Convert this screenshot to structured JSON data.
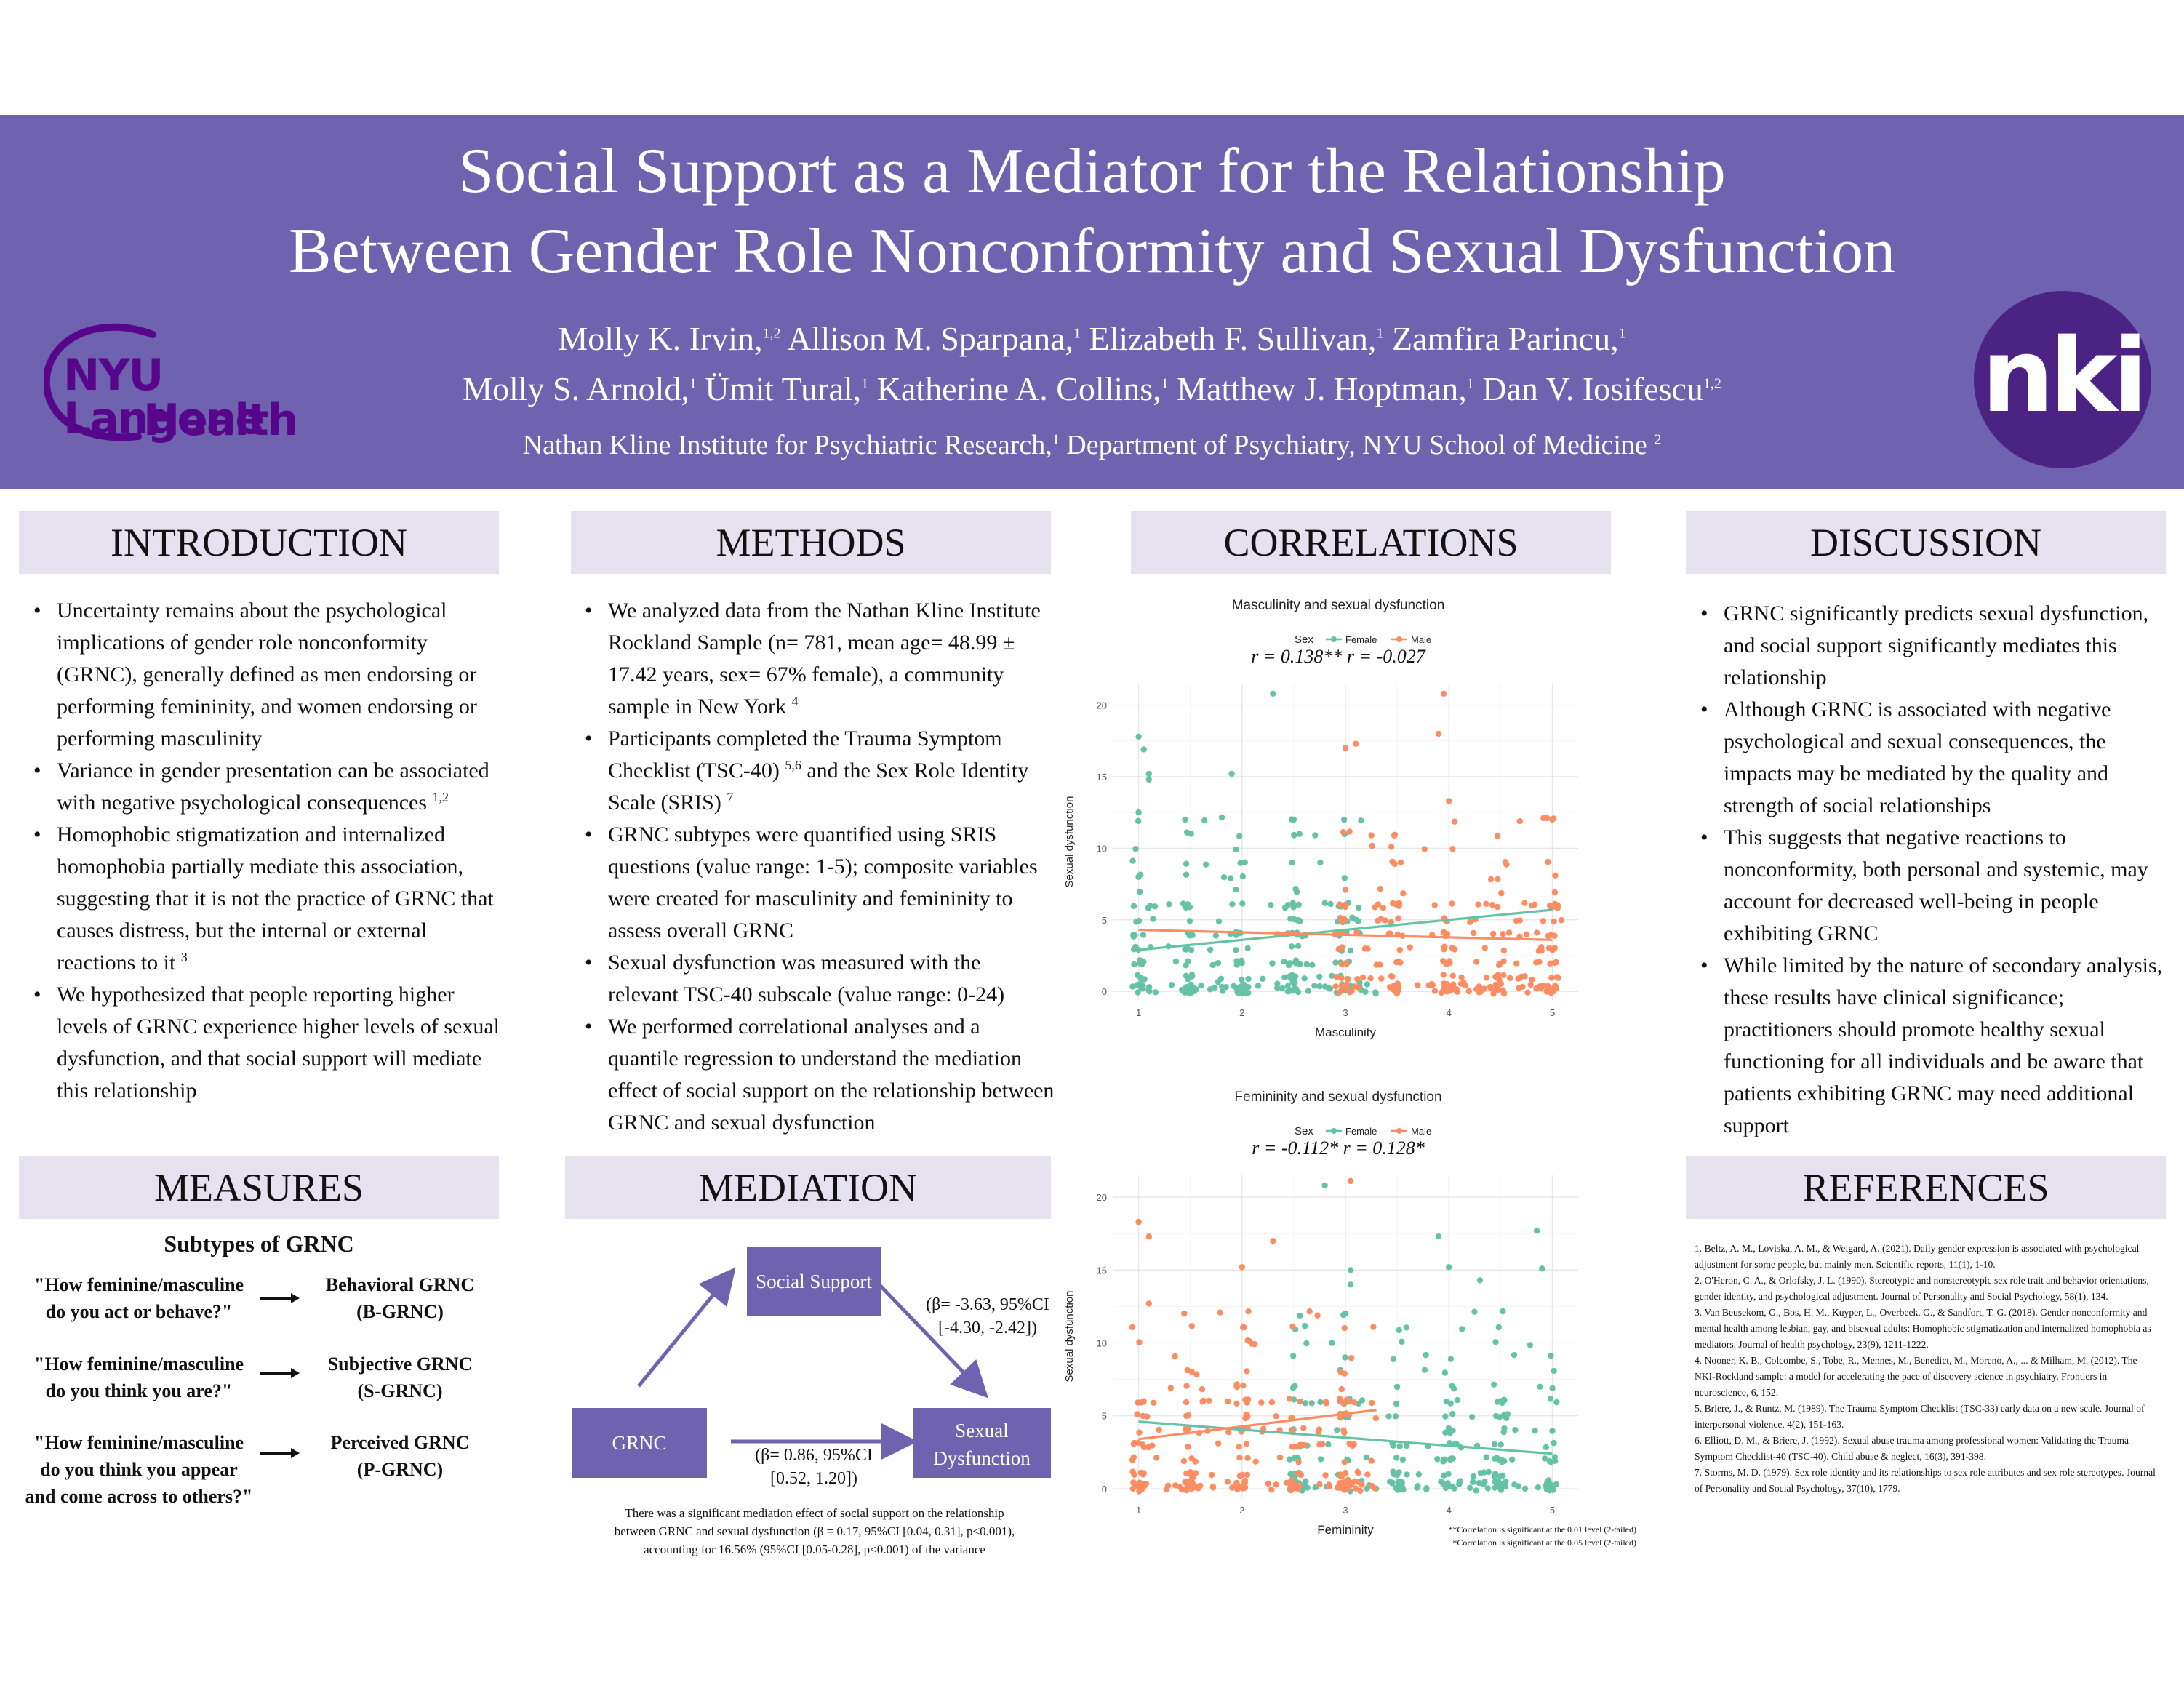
{
  "header": {
    "title_line1": "Social Support as a Mediator for the Relationship",
    "title_line2": "Between Gender Role Nonconformity and Sexual Dysfunction",
    "authors": [
      {
        "name": "Molly K. Irvin,",
        "sup": "1,2"
      },
      {
        "name": "Allison M. Sparpana,",
        "sup": "1"
      },
      {
        "name": "Elizabeth F. Sullivan,",
        "sup": "1"
      },
      {
        "name": "Zamfira Parincu,",
        "sup": "1"
      },
      {
        "name": "Molly S. Arnold,",
        "sup": "1"
      },
      {
        "name": "Ümit Tural,",
        "sup": "1"
      },
      {
        "name": "Katherine A. Collins,",
        "sup": "1"
      },
      {
        "name": "Matthew J. Hoptman,",
        "sup": "1"
      },
      {
        "name": "Dan V. Iosifescu",
        "sup": "1,2"
      }
    ],
    "affiliation_1": "Nathan Kline Institute for Psychiatric Research,",
    "affiliation_1_sup": "1",
    "affiliation_2": "Department of Psychiatry, NYU School of Medicine",
    "affiliation_2_sup": "2",
    "logo_left_line1": "NYU Langone",
    "logo_left_line2": "Health",
    "logo_right": "nki",
    "banner_color": "#6f62ae"
  },
  "sections": {
    "introduction": "INTRODUCTION",
    "methods": "METHODS",
    "correlations": "CORRELATIONS",
    "discussion": "DISCUSSION",
    "measures": "MEASURES",
    "mediation": "MEDIATION",
    "references": "REFERENCES"
  },
  "introduction": [
    {
      "text": "Uncertainty remains about the psychological implications of gender role nonconformity (GRNC), generally defined as men endorsing or performing femininity, and women endorsing or performing masculinity",
      "sup": ""
    },
    {
      "text": "Variance in gender presentation can be associated with negative psychological consequences ",
      "sup": "1,2"
    },
    {
      "text": "Homophobic stigmatization and internalized homophobia partially mediate this association, suggesting that it is not the practice of GRNC that causes distress, but the internal or external reactions to it ",
      "sup": "3"
    },
    {
      "text": "We hypothesized that people reporting higher levels of GRNC experience higher levels of sexual dysfunction, and that social support will mediate this relationship",
      "sup": ""
    }
  ],
  "methods": [
    {
      "text": "We analyzed data from the Nathan Kline Institute Rockland Sample (n= 781, mean age= 48.99 ± 17.42 years, sex= 67% female), a community sample in New York ",
      "sup": "4",
      "after": ""
    },
    {
      "text": "Participants completed the Trauma Symptom Checklist (TSC-40) ",
      "sup": "5,6",
      "after": " and the Sex Role Identity Scale (SRIS) ",
      "sup2": "7"
    },
    {
      "text": "GRNC subtypes were quantified using SRIS questions (value range: 1-5); composite variables were created for masculinity and femininity to assess overall GRNC",
      "sup": "",
      "after": ""
    },
    {
      "text": "Sexual dysfunction was measured with the relevant TSC-40 subscale (value range: 0-24)",
      "sup": "",
      "after": ""
    },
    {
      "text": "We performed correlational analyses and a quantile regression to understand the mediation effect of social support on the relationship between GRNC and sexual dysfunction",
      "sup": "",
      "after": ""
    }
  ],
  "discussion": [
    "GRNC significantly predicts sexual dysfunction, and social support significantly mediates this relationship",
    "Although GRNC is associated with negative psychological and sexual consequences, the impacts may be mediated by the quality and strength of social relationships",
    "This suggests that negative reactions to nonconformity, both personal and systemic, may account for decreased well-being in people exhibiting GRNC",
    "While limited by the nature of secondary analysis, these results have clinical significance; practitioners should promote healthy sexual functioning for all individuals and be aware that patients exhibiting GRNC may need additional support"
  ],
  "measures": {
    "subtitle": "Subtypes of GRNC",
    "rows": [
      {
        "question_l1": "\"How feminine/masculine",
        "question_l2": "do you act or behave?\"",
        "question_l3": "",
        "type_l1": "Behavioral GRNC",
        "type_l2": "(B-GRNC)"
      },
      {
        "question_l1": "\"How feminine/masculine",
        "question_l2": "do you think you are?\"",
        "question_l3": "",
        "type_l1": "Subjective GRNC",
        "type_l2": "(S-GRNC)"
      },
      {
        "question_l1": "\"How feminine/masculine",
        "question_l2": "do you think you appear",
        "question_l3": "and come across to others?\"",
        "type_l1": "Perceived GRNC",
        "type_l2": "(P-GRNC)"
      }
    ]
  },
  "mediation": {
    "box_mediator": "Social Support",
    "box_x": "GRNC",
    "box_y_l1": "Sexual",
    "box_y_l2": "Dysfunction",
    "path_b_l1": "(β= -3.63, 95%CI",
    "path_b_l2": "[-4.30, -2.42])",
    "path_c_l1": "(β= 0.86, 95%CI",
    "path_c_l2": "[0.52, 1.20])",
    "note_l1": "There was a significant mediation effect of social support on the relationship",
    "note_l2": "between GRNC and sexual dysfunction (β = 0.17, 95%CI [0.04, 0.31], p<0.001),",
    "note_l3": "accounting for 16.56% (95%CI [0.05-0.28], p<0.001) of the variance",
    "box_color": "#6f62ae"
  },
  "chart_data": [
    {
      "type": "scatter",
      "title": "Masculinity and sexual dysfunction",
      "xlabel": "Masculinity",
      "ylabel": "Sexual dysfunction",
      "xlim": [
        0.75,
        5.25
      ],
      "ylim": [
        -0.6,
        21.5
      ],
      "xticks": [
        1,
        2,
        3,
        4,
        5
      ],
      "yticks": [
        0,
        5,
        10,
        15,
        20
      ],
      "grid": true,
      "legend_title": "Sex",
      "legend_position": "top",
      "annotation_female": "r = 0.138**",
      "annotation_male": "r = -0.027",
      "series": [
        {
          "name": "Female",
          "color": "#66c2a5",
          "x_range": [
            1,
            3.3
          ],
          "trend": [
            [
              1,
              2.9
            ],
            [
              5,
              5.7
            ]
          ],
          "outliers": [
            [
              1,
              17.8
            ],
            [
              1.05,
              16.9
            ],
            [
              1.1,
              15.2
            ],
            [
              1.1,
              14.8
            ],
            [
              1.9,
              15.2
            ],
            [
              2.3,
              20.8
            ],
            [
              1.45,
              12
            ],
            [
              2.5,
              12
            ],
            [
              1,
              12.5
            ]
          ]
        },
        {
          "name": "Male",
          "color": "#fc8d62",
          "x_range": [
            2.9,
            5.1
          ],
          "trend": [
            [
              1,
              4.3
            ],
            [
              5,
              3.6
            ]
          ],
          "outliers": [
            [
              3.95,
              20.8
            ],
            [
              3.9,
              18
            ],
            [
              3,
              17
            ],
            [
              3.1,
              17.3
            ],
            [
              4.95,
              12.1
            ],
            [
              5,
              12
            ],
            [
              4,
              13.3
            ]
          ]
        }
      ]
    },
    {
      "type": "scatter",
      "title": "Femininity and sexual dysfunction",
      "xlabel": "Femininity",
      "ylabel": "Sexual dysfunction",
      "xlim": [
        0.75,
        5.25
      ],
      "ylim": [
        -0.6,
        21.5
      ],
      "xticks": [
        1,
        2,
        3,
        4,
        5
      ],
      "yticks": [
        0,
        5,
        10,
        15,
        20
      ],
      "grid": true,
      "legend_title": "Sex",
      "legend_position": "top",
      "annotation_female": "r = -0.112*",
      "annotation_male": "r = 0.128*",
      "series": [
        {
          "name": "Female",
          "color": "#66c2a5",
          "x_range": [
            2.5,
            5.05
          ],
          "trend": [
            [
              1,
              4.6
            ],
            [
              5,
              2.4
            ]
          ],
          "outliers": [
            [
              2.8,
              20.8
            ],
            [
              3.05,
              15
            ],
            [
              3.05,
              14
            ],
            [
              4,
              15.2
            ],
            [
              4.85,
              17.7
            ],
            [
              4.9,
              15.1
            ],
            [
              3.9,
              17.3
            ],
            [
              4.3,
              14.3
            ]
          ]
        },
        {
          "name": "Male",
          "color": "#fc8d62",
          "x_range": [
            1,
            3.3
          ],
          "trend": [
            [
              1,
              3.4
            ],
            [
              3.3,
              5.4
            ]
          ],
          "outliers": [
            [
              1,
              18.3
            ],
            [
              1.1,
              17.3
            ],
            [
              2.3,
              17
            ],
            [
              3.05,
              21.1
            ],
            [
              2,
              15.2
            ],
            [
              1.1,
              12.7
            ]
          ]
        }
      ]
    }
  ],
  "significance_notes": {
    "line1": "**Correlation is significant at the 0.01 level (2-tailed)",
    "line2": "*Correlation is significant at the 0.05 level (2-tailed)"
  },
  "references": [
    "1. Beltz, A. M., Loviska, A. M., & Weigard, A. (2021). Daily gender expression is associated with psychological adjustment for some people, but mainly men. Scientific reports, 11(1), 1-10.",
    "2. O'Heron, C. A., & Orlofsky, J. L. (1990). Stereotypic and nonstereotypic sex role trait and behavior orientations, gender identity, and psychological adjustment. Journal of Personality and Social Psychology, 58(1), 134.",
    "3. Van Beusekom, G., Bos, H. M., Kuyper, L., Overbeek, G., & Sandfort, T. G. (2018). Gender nonconformity and mental health among lesbian, gay, and bisexual adults: Homophobic stigmatization and internalized homophobia as mediators. Journal of health psychology, 23(9), 1211-1222.",
    "4. Nooner, K. B., Colcombe, S., Tobe, R., Mennes, M., Benedict, M., Moreno, A., ... & Milham, M. (2012). The NKI-Rockland sample: a model for accelerating the pace of discovery science in psychiatry. Frontiers in neuroscience, 6, 152.",
    "5. Briere, J., & Runtz, M. (1989). The Trauma Symptom Checklist (TSC-33) early data on a new scale. Journal of interpersonal violence, 4(2), 151-163.",
    "6. Elliott, D. M., & Briere, J. (1992). Sexual abuse trauma among professional women: Validating the Trauma Symptom Checklist-40 (TSC-40). Child abuse & neglect, 16(3), 391-398.",
    "7. Storms, M. D. (1979). Sex role identity and its relationships to sex role attributes and sex role stereotypes. Journal of Personality and Social Psychology, 37(10), 1779."
  ]
}
